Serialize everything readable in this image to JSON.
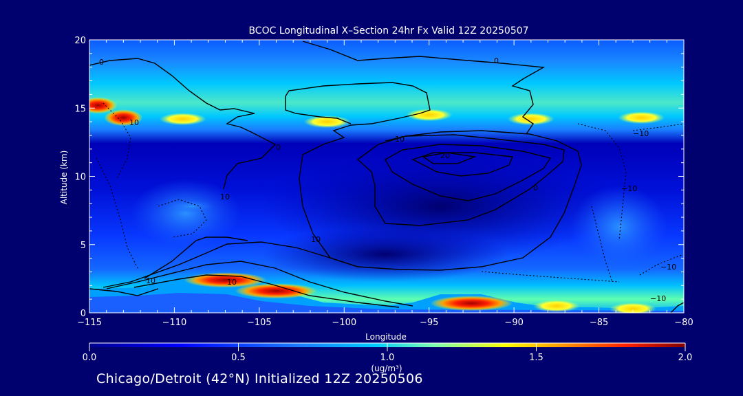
{
  "chart_data": {
    "type": "heatmap",
    "title": "BCOC Longitudinal X–Section 24hr  Fx Valid 12Z 20250507",
    "xlabel": "Longitude",
    "ylabel": "Altitude (km)",
    "xlim": [
      -115,
      -80
    ],
    "ylim": [
      0,
      20
    ],
    "x_ticks": [
      -115,
      -110,
      -105,
      -100,
      -95,
      -90,
      -85,
      -80
    ],
    "x_tick_labels": [
      "−115",
      "−110",
      "−105",
      "−100",
      "−95",
      "−90",
      "−85",
      "−80"
    ],
    "y_ticks": [
      0,
      5,
      10,
      15,
      20
    ],
    "y_tick_labels": [
      "0",
      "5",
      "10",
      "15",
      "20"
    ],
    "colorbar": {
      "min": 0.0,
      "max": 2.0,
      "ticks": [
        0.0,
        0.5,
        1.0,
        1.5,
        2.0
      ],
      "tick_labels": [
        "0.0",
        "0.5",
        "1.0",
        "1.5",
        "2.0"
      ],
      "unit_label": "(ug/m³)",
      "colors": [
        "#000090",
        "#0000ff",
        "#1a7cff",
        "#00ccff",
        "#80ffb0",
        "#ffff00",
        "#ff9000",
        "#ff2000",
        "#b00000",
        "#800000"
      ]
    },
    "contour_labels": [
      "0",
      "0",
      "0",
      "10",
      "10",
      "10",
      "20",
      "0",
      "−10",
      "10",
      "10",
      "10",
      "−10",
      "−10",
      "−10"
    ],
    "features": [
      {
        "lon": -114.5,
        "alt": 15.2,
        "value": 1.75
      },
      {
        "lon": -113.0,
        "alt": 14.3,
        "value": 1.65
      },
      {
        "lon": -109.5,
        "alt": 14.2,
        "value": 1.2
      },
      {
        "lon": -101.0,
        "alt": 14.0,
        "value": 1.1
      },
      {
        "lon": -95.0,
        "alt": 14.5,
        "value": 1.15
      },
      {
        "lon": -89.0,
        "alt": 14.2,
        "value": 1.25
      },
      {
        "lon": -82.5,
        "alt": 14.3,
        "value": 1.5
      },
      {
        "lon": -107.0,
        "alt": 2.4,
        "value": 2.0
      },
      {
        "lon": -104.0,
        "alt": 1.6,
        "value": 2.0
      },
      {
        "lon": -92.5,
        "alt": 0.7,
        "value": 2.0
      },
      {
        "lon": -87.5,
        "alt": 0.5,
        "value": 1.2
      },
      {
        "lon": -83.0,
        "alt": 0.3,
        "value": 1.0
      },
      {
        "lon": -109.0,
        "alt": 7.8,
        "value": 0.55
      }
    ]
  },
  "footer": "Chicago/Detroit (42°N) Initialized 12Z 20250506",
  "colorbar_unit_line1": "1.0"
}
